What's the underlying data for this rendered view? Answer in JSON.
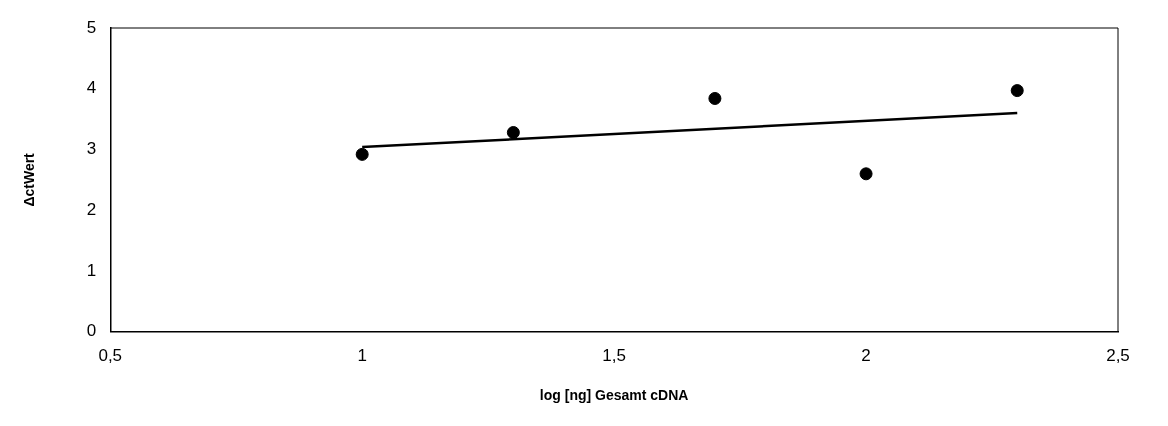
{
  "chart_data": {
    "type": "scatter",
    "xlabel": "log [ng] Gesamt cDNA",
    "ylabel": "ΔctWert",
    "xlim": [
      0.5,
      2.5
    ],
    "xticks": [
      {
        "value": 0.5,
        "label": "0,5"
      },
      1,
      {
        "value": 1.5,
        "label": "1,5"
      },
      2,
      {
        "value": 2.5,
        "label": "2,5"
      }
    ],
    "ylim": [
      0,
      5
    ],
    "yticks": [
      0,
      1,
      2,
      3,
      4,
      5
    ],
    "grid": false,
    "legend": false,
    "marker": "circle",
    "series": [
      {
        "type": "scatter",
        "color": "#000000",
        "x": [
          1,
          1.3,
          1.7,
          2,
          2.3
        ],
        "values": [
          2.92,
          3.28,
          3.84,
          2.6,
          3.97
        ]
      },
      {
        "type": "line",
        "color": "#000000",
        "line_style": "solid",
        "marker": "none",
        "x": [
          1,
          2.3
        ],
        "values": [
          3.04,
          3.6
        ]
      }
    ]
  }
}
